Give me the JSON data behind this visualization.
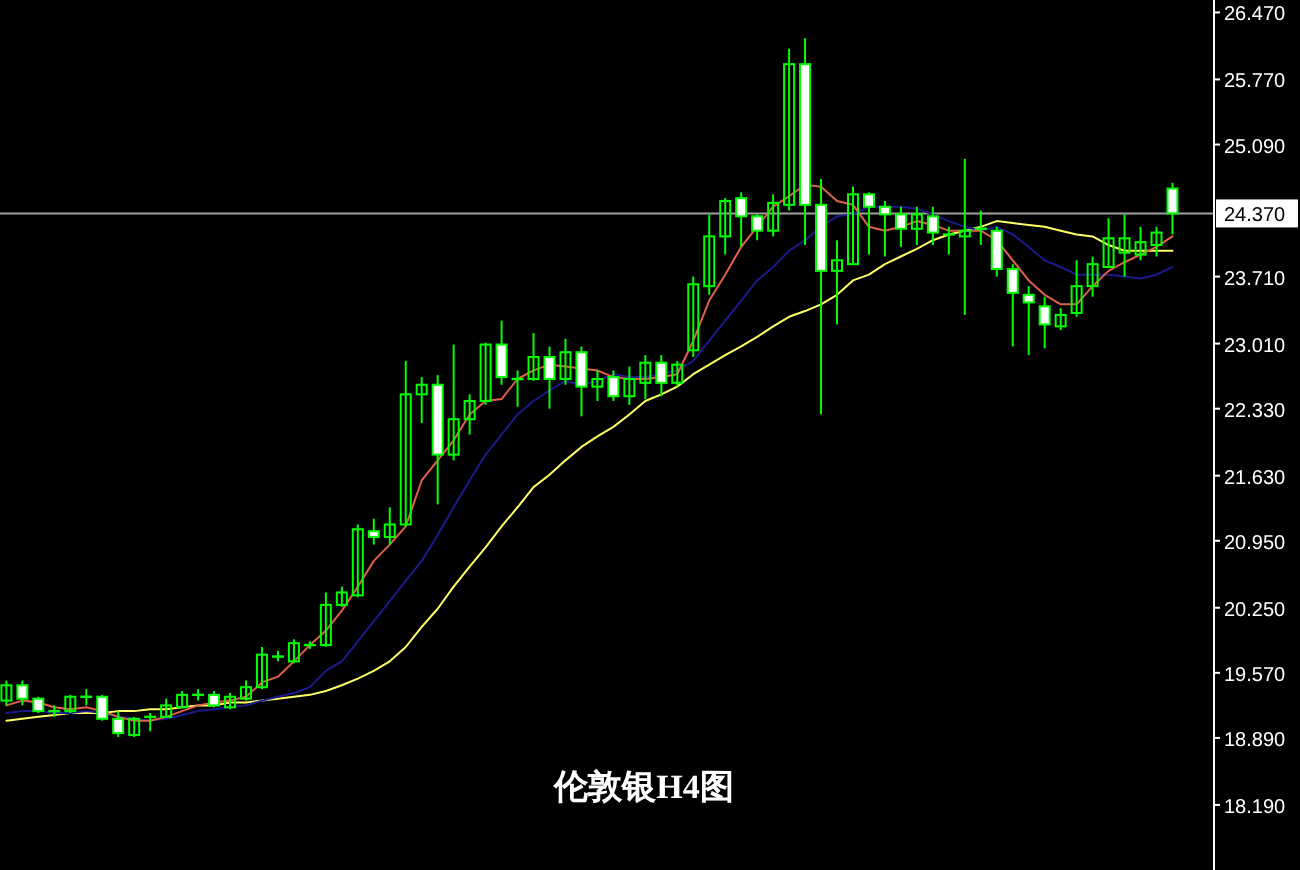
{
  "chart_data": {
    "type": "candlestick",
    "title": "伦敦银H4图",
    "categories": [
      null,
      null,
      null,
      null,
      null,
      null,
      null,
      null,
      null,
      null,
      null,
      null,
      null,
      null,
      null,
      null,
      null,
      null,
      null,
      null,
      null,
      null,
      null,
      null,
      null,
      null,
      null,
      null,
      null,
      null,
      null,
      null,
      null,
      null,
      null,
      null,
      null,
      null,
      null,
      null,
      null,
      null,
      null,
      null,
      null,
      null,
      null,
      null,
      null,
      null,
      null,
      null,
      null,
      null,
      null,
      null,
      null,
      null,
      null,
      null,
      null,
      null,
      null,
      null,
      null,
      null,
      null,
      null,
      null,
      null,
      null,
      null,
      null,
      null
    ],
    "series": [
      {
        "type": "line",
        "color": "#ffff66",
        "values": [
          19.07,
          19.09,
          19.11,
          19.13,
          19.15,
          19.15,
          19.15,
          19.17,
          19.17,
          19.19,
          19.19,
          19.21,
          19.23,
          19.23,
          19.26,
          19.26,
          19.28,
          19.3,
          19.32,
          19.34,
          19.38,
          19.44,
          19.51,
          19.59,
          19.69,
          19.84,
          20.05,
          20.24,
          20.47,
          20.68,
          20.88,
          21.1,
          21.3,
          21.51,
          21.64,
          21.79,
          21.93,
          22.04,
          22.14,
          22.27,
          22.41,
          22.48,
          22.56,
          22.69,
          22.79,
          22.89,
          22.98,
          23.08,
          23.19,
          23.29,
          23.35,
          23.42,
          23.52,
          23.67,
          23.73,
          23.84,
          23.92,
          24.0,
          24.09,
          24.15,
          24.19,
          24.23,
          24.29,
          24.27,
          24.25,
          24.23,
          24.19,
          24.15,
          24.13,
          24.04,
          23.98,
          23.98,
          23.98,
          23.98
        ]
      },
      {
        "type": "line",
        "color": "#1a1a8c",
        "values": [
          19.15,
          19.17,
          19.17,
          19.15,
          19.15,
          19.17,
          19.15,
          19.11,
          19.09,
          19.07,
          19.09,
          19.13,
          19.17,
          19.19,
          19.21,
          19.23,
          19.28,
          19.32,
          19.36,
          19.42,
          19.59,
          19.69,
          19.9,
          20.11,
          20.32,
          20.53,
          20.74,
          21.01,
          21.3,
          21.58,
          21.85,
          22.06,
          22.27,
          22.41,
          22.52,
          22.62,
          22.58,
          22.62,
          22.69,
          22.66,
          22.66,
          22.69,
          22.73,
          22.83,
          23.04,
          23.25,
          23.46,
          23.67,
          23.81,
          23.98,
          24.09,
          24.23,
          24.34,
          24.36,
          24.44,
          24.44,
          24.44,
          24.42,
          24.36,
          24.29,
          24.23,
          24.19,
          24.23,
          24.15,
          24.02,
          23.88,
          23.81,
          23.73,
          23.73,
          23.73,
          23.71,
          23.69,
          23.73,
          23.81
        ]
      },
      {
        "type": "line",
        "color": "#e0604a",
        "values": [
          19.23,
          19.28,
          19.26,
          19.21,
          19.19,
          19.21,
          19.17,
          19.11,
          19.07,
          19.07,
          19.11,
          19.17,
          19.23,
          19.26,
          19.28,
          19.32,
          19.47,
          19.53,
          19.69,
          19.86,
          20.01,
          20.22,
          20.47,
          20.74,
          20.91,
          21.1,
          21.58,
          21.79,
          22.0,
          22.27,
          22.41,
          22.43,
          22.64,
          22.73,
          22.79,
          22.77,
          22.75,
          22.73,
          22.66,
          22.64,
          22.64,
          22.66,
          22.69,
          23.04,
          23.46,
          23.73,
          24.02,
          24.23,
          24.44,
          24.55,
          24.67,
          24.65,
          24.5,
          24.46,
          24.23,
          24.19,
          24.23,
          24.29,
          24.25,
          24.19,
          24.19,
          24.19,
          24.09,
          23.88,
          23.67,
          23.52,
          23.42,
          23.42,
          23.61,
          23.77,
          23.86,
          23.94,
          24.02,
          24.13
        ]
      },
      {
        "type": "candlestick",
        "color": "#00ff00",
        "ohlc": [
          [
            19.28,
            19.49,
            19.23,
            19.44
          ],
          [
            19.44,
            19.49,
            19.23,
            19.3
          ],
          [
            19.3,
            19.32,
            19.15,
            19.17
          ],
          [
            19.17,
            19.23,
            19.11,
            19.17
          ],
          [
            19.17,
            19.34,
            19.15,
            19.32
          ],
          [
            19.32,
            19.4,
            19.23,
            19.32
          ],
          [
            19.32,
            19.34,
            19.07,
            19.09
          ],
          [
            19.09,
            19.17,
            18.9,
            18.94
          ],
          [
            18.92,
            19.11,
            18.9,
            19.09
          ],
          [
            19.11,
            19.15,
            18.96,
            19.11
          ],
          [
            19.11,
            19.3,
            19.11,
            19.23
          ],
          [
            19.21,
            19.38,
            19.21,
            19.34
          ],
          [
            19.34,
            19.4,
            19.28,
            19.34
          ],
          [
            19.34,
            19.38,
            19.21,
            19.23
          ],
          [
            19.21,
            19.36,
            19.19,
            19.32
          ],
          [
            19.3,
            19.49,
            19.28,
            19.42
          ],
          [
            19.42,
            19.84,
            19.4,
            19.76
          ],
          [
            19.74,
            19.8,
            19.69,
            19.74
          ],
          [
            19.69,
            19.92,
            19.67,
            19.88
          ],
          [
            19.86,
            19.9,
            19.82,
            19.86
          ],
          [
            19.86,
            20.41,
            19.84,
            20.28
          ],
          [
            20.28,
            20.47,
            20.26,
            20.41
          ],
          [
            20.38,
            21.12,
            20.36,
            21.07
          ],
          [
            21.05,
            21.18,
            20.91,
            20.99
          ],
          [
            20.99,
            21.3,
            20.91,
            21.12
          ],
          [
            21.12,
            22.83,
            21.1,
            22.48
          ],
          [
            22.48,
            22.66,
            22.18,
            22.58
          ],
          [
            22.58,
            22.68,
            21.33,
            21.85
          ],
          [
            21.85,
            23.0,
            21.79,
            22.22
          ],
          [
            22.22,
            22.48,
            22.06,
            22.41
          ],
          [
            22.41,
            23.02,
            22.37,
            23.0
          ],
          [
            23.0,
            23.25,
            22.58,
            22.66
          ],
          [
            22.64,
            22.73,
            22.35,
            22.64
          ],
          [
            22.64,
            23.12,
            22.62,
            22.87
          ],
          [
            22.87,
            22.98,
            22.33,
            22.64
          ],
          [
            22.64,
            23.06,
            22.58,
            22.92
          ],
          [
            22.92,
            22.98,
            22.25,
            22.56
          ],
          [
            22.56,
            22.73,
            22.41,
            22.64
          ],
          [
            22.66,
            22.73,
            22.41,
            22.46
          ],
          [
            22.46,
            22.77,
            22.37,
            22.64
          ],
          [
            22.6,
            22.89,
            22.43,
            22.81
          ],
          [
            22.81,
            22.89,
            22.46,
            22.6
          ],
          [
            22.6,
            22.83,
            22.56,
            22.79
          ],
          [
            22.94,
            23.71,
            22.87,
            23.63
          ],
          [
            23.61,
            24.36,
            23.52,
            24.13
          ],
          [
            24.13,
            24.53,
            23.94,
            24.5
          ],
          [
            24.53,
            24.59,
            24.02,
            24.34
          ],
          [
            24.34,
            24.36,
            24.09,
            24.19
          ],
          [
            24.19,
            24.57,
            24.13,
            24.48
          ],
          [
            24.46,
            26.09,
            24.4,
            25.93
          ],
          [
            25.93,
            26.2,
            24.04,
            24.46
          ],
          [
            24.46,
            24.73,
            22.27,
            23.77
          ],
          [
            23.77,
            24.09,
            23.21,
            23.88
          ],
          [
            23.84,
            24.65,
            23.84,
            24.57
          ],
          [
            24.57,
            24.59,
            23.94,
            24.44
          ],
          [
            24.44,
            24.5,
            23.92,
            24.36
          ],
          [
            24.36,
            24.44,
            24.02,
            24.21
          ],
          [
            24.21,
            24.44,
            24.04,
            24.36
          ],
          [
            24.34,
            24.44,
            24.04,
            24.17
          ],
          [
            24.15,
            24.23,
            23.94,
            24.15
          ],
          [
            24.13,
            24.94,
            23.31,
            24.19
          ],
          [
            24.21,
            24.4,
            24.04,
            24.21
          ],
          [
            24.19,
            24.23,
            23.71,
            23.79
          ],
          [
            23.79,
            23.84,
            22.98,
            23.54
          ],
          [
            23.52,
            23.61,
            22.89,
            23.44
          ],
          [
            23.4,
            23.5,
            22.96,
            23.21
          ],
          [
            23.19,
            23.38,
            23.15,
            23.31
          ],
          [
            23.33,
            23.88,
            23.29,
            23.61
          ],
          [
            23.61,
            23.92,
            23.5,
            23.84
          ],
          [
            23.81,
            24.32,
            23.81,
            24.11
          ],
          [
            23.96,
            24.36,
            23.71,
            24.11
          ],
          [
            23.94,
            24.23,
            23.88,
            24.07
          ],
          [
            24.04,
            24.23,
            23.92,
            24.17
          ],
          [
            24.63,
            24.69,
            24.15,
            24.37
          ]
        ]
      }
    ],
    "ylim": [
      17.51,
      26.6
    ],
    "yticks": [
      {
        "value": 26.47,
        "label": "26.470"
      },
      {
        "value": 25.77,
        "label": "25.770"
      },
      {
        "value": 25.09,
        "label": "25.090"
      },
      {
        "value": 23.71,
        "label": "23.710"
      },
      {
        "value": 23.01,
        "label": "23.010"
      },
      {
        "value": 22.33,
        "label": "22.330"
      },
      {
        "value": 21.63,
        "label": "21.630"
      },
      {
        "value": 20.95,
        "label": "20.950"
      },
      {
        "value": 20.25,
        "label": "20.250"
      },
      {
        "value": 19.57,
        "label": "19.570"
      },
      {
        "value": 18.89,
        "label": "18.890"
      },
      {
        "value": 18.19,
        "label": "18.190"
      }
    ],
    "ref_lines": [
      {
        "axis": "y",
        "value": 24.37,
        "label": "24.370",
        "color": "#a0a0a0"
      }
    ],
    "tick_labels": "y"
  }
}
